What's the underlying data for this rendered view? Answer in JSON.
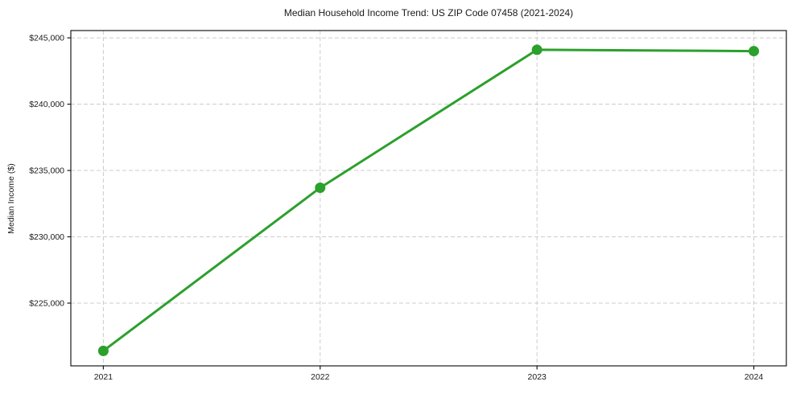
{
  "chart_data": {
    "type": "line",
    "title": "Median Household Income Trend: US ZIP Code 07458 (2021-2024)",
    "xlabel": "",
    "ylabel": "Median Income ($)",
    "x": [
      2021,
      2022,
      2023,
      2024
    ],
    "x_tick_labels": [
      "2021",
      "2022",
      "2023",
      "2024"
    ],
    "values": [
      221400,
      233700,
      244100,
      244000
    ],
    "y_ticks": [
      225000,
      230000,
      235000,
      240000,
      245000
    ],
    "y_tick_labels": [
      "$225,000",
      "$230,000",
      "$235,000",
      "$240,000",
      "$245,000"
    ],
    "xlim": [
      2020.85,
      2024.15
    ],
    "ylim": [
      220270,
      245550
    ],
    "grid": true,
    "grid_style": "dashed",
    "legend": "none",
    "line_color": "#2ca02c",
    "marker_color": "#2ca02c",
    "grid_color": "#cccccc",
    "axis_color": "#1a1a1a",
    "background_color": "#ffffff"
  }
}
